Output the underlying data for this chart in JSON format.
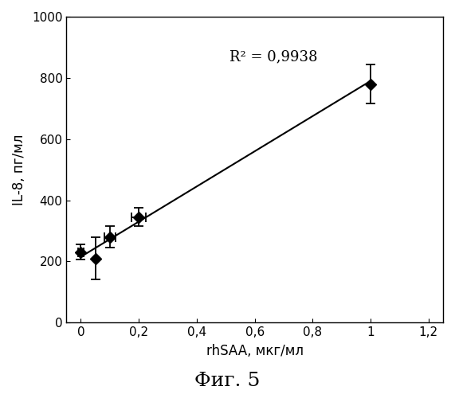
{
  "x": [
    0.0,
    0.05,
    0.1,
    0.2,
    1.0
  ],
  "y": [
    230,
    210,
    280,
    345,
    780
  ],
  "xerr": [
    0.01,
    0.0,
    0.02,
    0.025,
    0.0
  ],
  "yerr": [
    25,
    70,
    35,
    30,
    65
  ],
  "fit_x": [
    0.0,
    1.0
  ],
  "fit_y": [
    215,
    790
  ],
  "r2_text": "R² = 0,9938",
  "xlabel": "rhSAA, мкг/мл",
  "ylabel": "IL-8, пг/мл",
  "title": "Фиг. 5",
  "xlim": [
    -0.05,
    1.25
  ],
  "ylim": [
    0,
    1000
  ],
  "xticks": [
    0,
    0.2,
    0.4,
    0.6,
    0.8,
    1.0,
    1.2
  ],
  "yticks": [
    0,
    200,
    400,
    600,
    800,
    1000
  ],
  "background_color": "#ffffff",
  "marker_color": "#000000",
  "line_color": "#000000"
}
